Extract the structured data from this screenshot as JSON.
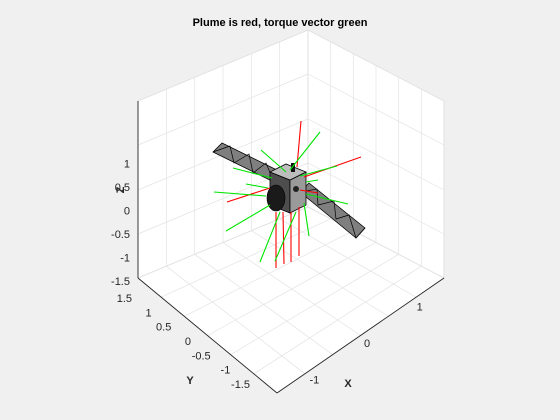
{
  "chart_data": {
    "type": "3d-line",
    "title": "Plume is red, torque vector green",
    "xlabel": "X",
    "ylabel": "Y",
    "zlabel": "Z",
    "xlim": [
      -1.5,
      1.5
    ],
    "ylim": [
      -1.5,
      1.5
    ],
    "zlim": [
      -1.5,
      1.5
    ],
    "x_ticks": [
      "-1",
      "0",
      "1"
    ],
    "y_ticks": [
      "-1.5",
      "-1",
      "-0.5",
      "0",
      "0.5",
      "1",
      "1.5"
    ],
    "z_ticks": [
      "-1.5",
      "-1",
      "-0.5",
      "0",
      "0.5",
      "1"
    ],
    "grid": true,
    "colors": {
      "plume": "#ff0000",
      "torque": "#00e600",
      "panel": "#808080",
      "body": "#8a8a8a",
      "background": "#f0f0f0",
      "axes": "#ffffff"
    }
  }
}
